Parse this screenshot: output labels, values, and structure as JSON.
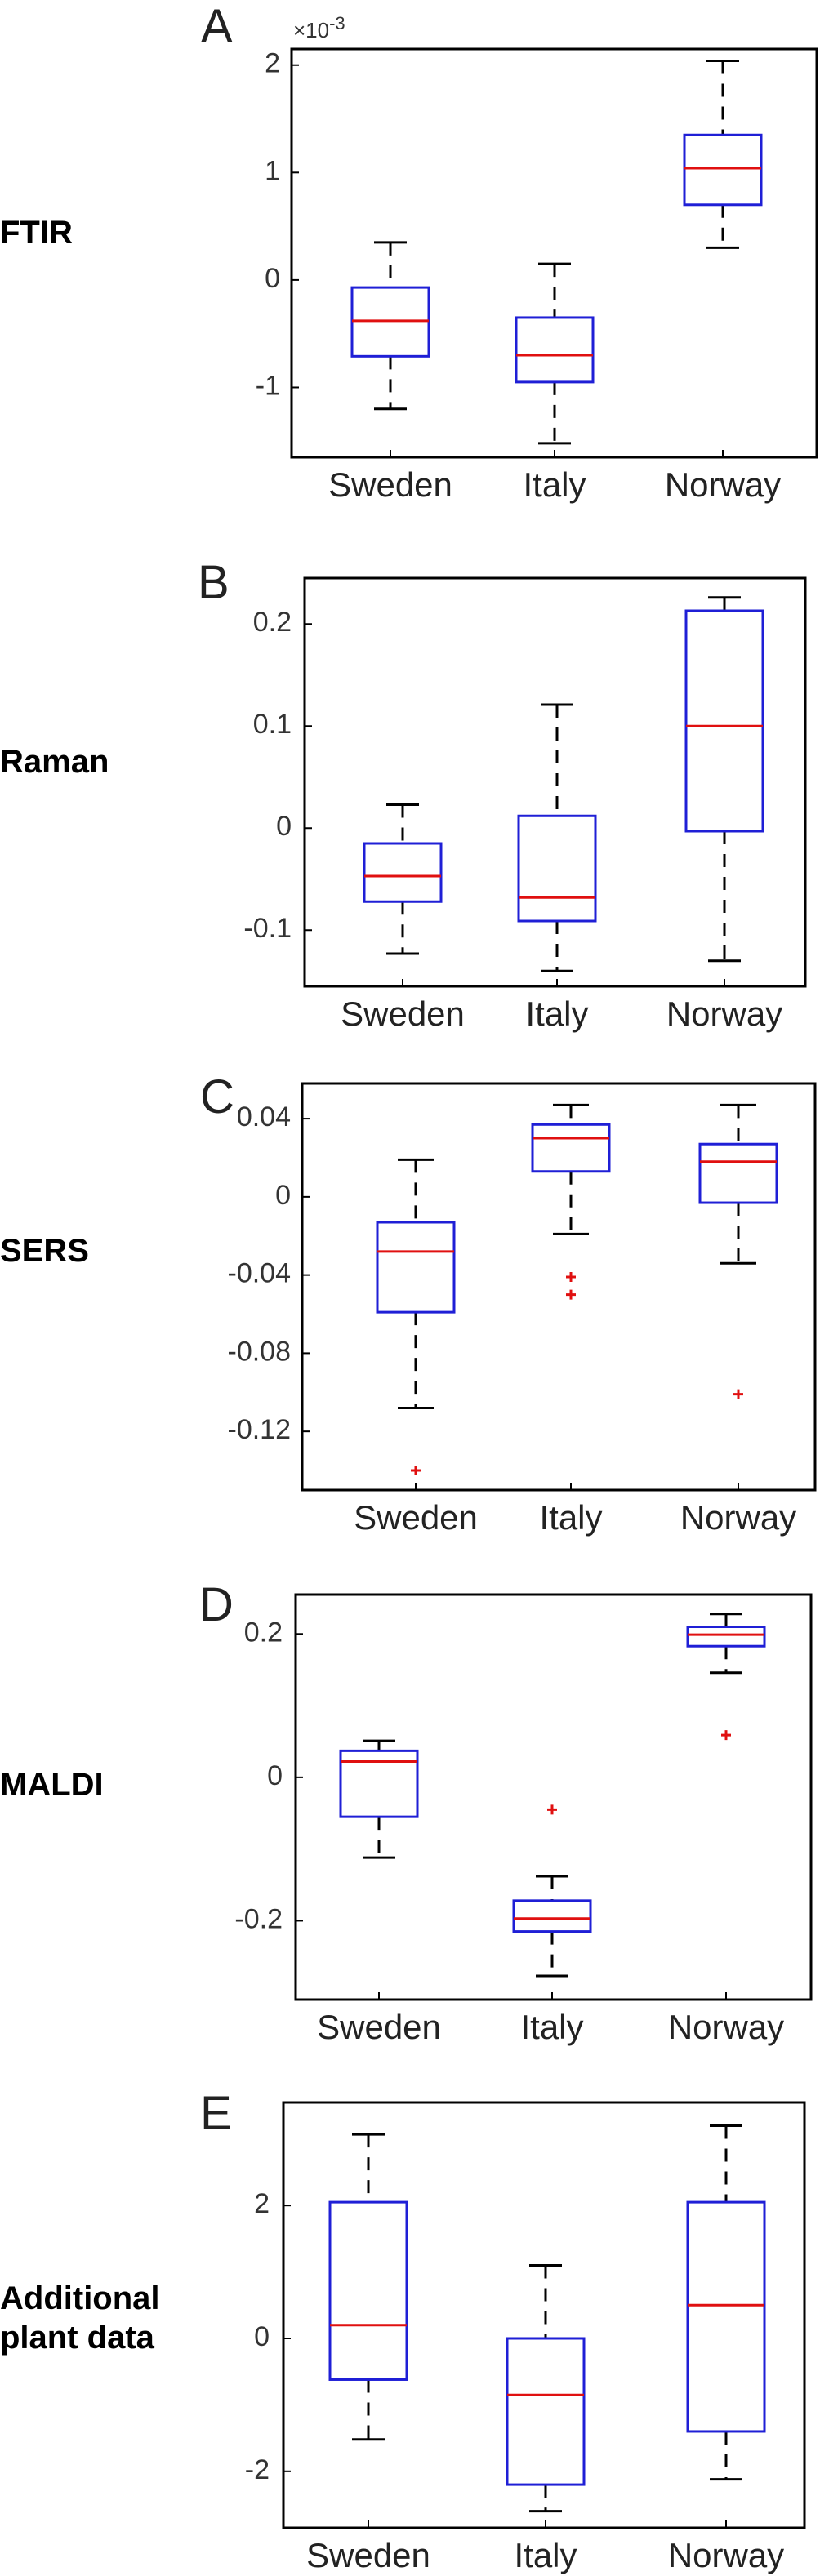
{
  "figure": {
    "colors": {
      "box": "#1f1fd6",
      "median": "#e01010",
      "whisker": "#000000",
      "outlier": "#e01010",
      "axes": "#000000",
      "tick_text": "#333333"
    }
  },
  "chart_data": [
    {
      "type": "box",
      "panel": "A",
      "row_label": "FTIR",
      "scale_label": "×10-3",
      "categories": [
        "Sweden",
        "Italy",
        "Norway"
      ],
      "yticks": [
        "-1",
        "0",
        "1",
        "2"
      ],
      "ytick_values": [
        -1,
        0,
        1,
        2
      ],
      "ylim": [
        -1.65,
        2.15
      ],
      "boxes": [
        {
          "category": "Sweden",
          "whisker_low": -1.2,
          "q1": -0.71,
          "median": -0.38,
          "q3": -0.07,
          "whisker_high": 0.35,
          "outliers": []
        },
        {
          "category": "Italy",
          "whisker_low": -1.52,
          "q1": -0.95,
          "median": -0.7,
          "q3": -0.35,
          "whisker_high": 0.15,
          "outliers": []
        },
        {
          "category": "Norway",
          "whisker_low": 0.3,
          "q1": 0.7,
          "median": 1.04,
          "q3": 1.35,
          "whisker_high": 2.04,
          "outliers": []
        }
      ]
    },
    {
      "type": "box",
      "panel": "B",
      "row_label": "Raman",
      "categories": [
        "Sweden",
        "Italy",
        "Norway"
      ],
      "yticks": [
        "-0.1",
        "0",
        "0.1",
        "0.2"
      ],
      "ytick_values": [
        -0.1,
        0,
        0.1,
        0.2
      ],
      "ylim": [
        -0.155,
        0.245
      ],
      "boxes": [
        {
          "category": "Sweden",
          "whisker_low": -0.123,
          "q1": -0.072,
          "median": -0.047,
          "q3": -0.015,
          "whisker_high": 0.023,
          "outliers": []
        },
        {
          "category": "Italy",
          "whisker_low": -0.14,
          "q1": -0.091,
          "median": -0.068,
          "q3": 0.012,
          "whisker_high": 0.121,
          "outliers": []
        },
        {
          "category": "Norway",
          "whisker_low": -0.13,
          "q1": -0.003,
          "median": 0.1,
          "q3": 0.213,
          "whisker_high": 0.226,
          "outliers": []
        }
      ]
    },
    {
      "type": "box",
      "panel": "C",
      "row_label": "SERS",
      "categories": [
        "Sweden",
        "Italy",
        "Norway"
      ],
      "yticks": [
        "-0.12",
        "-0.08",
        "-0.04",
        "0",
        "0.04"
      ],
      "ytick_values": [
        -0.12,
        -0.08,
        -0.04,
        0,
        0.04
      ],
      "ylim": [
        -0.15,
        0.058
      ],
      "boxes": [
        {
          "category": "Sweden",
          "whisker_low": -0.108,
          "q1": -0.059,
          "median": -0.028,
          "q3": -0.013,
          "whisker_high": 0.019,
          "outliers": [
            -0.14
          ]
        },
        {
          "category": "Italy",
          "whisker_low": -0.019,
          "q1": 0.013,
          "median": 0.03,
          "q3": 0.037,
          "whisker_high": 0.047,
          "outliers": [
            -0.041,
            -0.05
          ]
        },
        {
          "category": "Norway",
          "whisker_low": -0.034,
          "q1": -0.003,
          "median": 0.018,
          "q3": 0.027,
          "whisker_high": 0.047,
          "outliers": [
            -0.101
          ]
        }
      ]
    },
    {
      "type": "box",
      "panel": "D",
      "row_label": "MALDI",
      "categories": [
        "Sweden",
        "Italy",
        "Norway"
      ],
      "yticks": [
        "-0.2",
        "0",
        "0.2"
      ],
      "ytick_values": [
        -0.2,
        0,
        0.2
      ],
      "ylim": [
        -0.31,
        0.255
      ],
      "boxes": [
        {
          "category": "Sweden",
          "whisker_low": -0.112,
          "q1": -0.055,
          "median": 0.022,
          "q3": 0.037,
          "whisker_high": 0.051,
          "outliers": []
        },
        {
          "category": "Italy",
          "whisker_low": -0.277,
          "q1": -0.215,
          "median": -0.197,
          "q3": -0.172,
          "whisker_high": -0.138,
          "outliers": [
            -0.045
          ]
        },
        {
          "category": "Norway",
          "whisker_low": 0.146,
          "q1": 0.183,
          "median": 0.199,
          "q3": 0.21,
          "whisker_high": 0.228,
          "outliers": [
            0.059
          ]
        }
      ]
    },
    {
      "type": "box",
      "panel": "E",
      "row_label": "Additional\nplant data",
      "categories": [
        "Sweden",
        "Italy",
        "Norway"
      ],
      "yticks": [
        "-2",
        "0",
        "2"
      ],
      "ytick_values": [
        -2,
        0,
        2
      ],
      "ylim": [
        -2.85,
        3.55
      ],
      "boxes": [
        {
          "category": "Sweden",
          "whisker_low": -1.52,
          "q1": -0.62,
          "median": 0.2,
          "q3": 2.05,
          "whisker_high": 3.07,
          "outliers": []
        },
        {
          "category": "Italy",
          "whisker_low": -2.6,
          "q1": -2.2,
          "median": -0.85,
          "q3": 0.0,
          "whisker_high": 1.1,
          "outliers": []
        },
        {
          "category": "Norway",
          "whisker_low": -2.12,
          "q1": -1.4,
          "median": 0.5,
          "q3": 2.05,
          "whisker_high": 3.2,
          "outliers": []
        }
      ]
    }
  ]
}
